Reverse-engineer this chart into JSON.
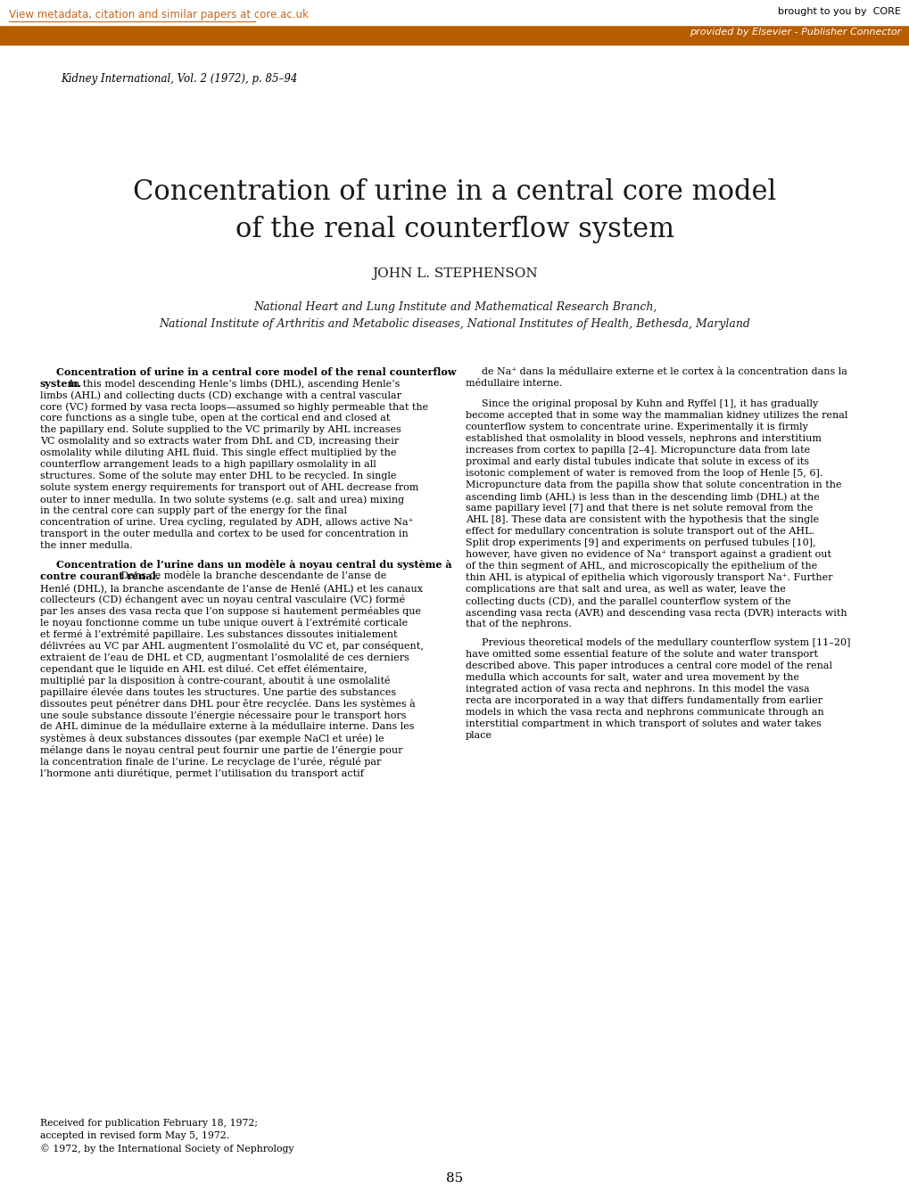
{
  "page_width": 10.2,
  "page_height": 13.45,
  "dpi": 100,
  "background_color": "#ffffff",
  "header_bar_color": "#b85c00",
  "header_link_text": "View metadata, citation and similar papers at core.ac.uk",
  "header_link_color": "#c8661a",
  "header_right_text": "brought to you by  CORE",
  "header_bar_text": "provided by Elsevier - Publisher Connector",
  "journal_citation": "Kidney International, Vol. 2 (1972), p. 85–94",
  "title_line1": "Concentration of urine in a central core model",
  "title_line2": "of the renal counterflow system",
  "author": "JOHN L. STEPHENSON",
  "affil1": "National Heart and Lung Institute and Mathematical Research Branch,",
  "affil2": "National Institute of Arthritis and Metabolic diseases, National Institutes of Health, Bethesda, Maryland",
  "abstract_left": "Concentration of urine in a central core model of the renal counterflow system. In this model descending Henle’s limbs (DHL), ascending Henle’s limbs (AHL) and collecting ducts (CD) exchange with a central vascular core (VC) formed by vasa recta loops—assumed so highly permeable that the core functions as a single tube, open at the cortical end and closed at the papillary end. Solute supplied to the VC primarily by AHL increases VC osmolality and so extracts water from DhL and CD, increasing their osmolality while diluting AHL fluid. This single effect multiplied by the counterflow arrangement leads to a high papillary osmolality in all structures. Some of the solute may enter DHL to be recycled. In single solute system energy requirements for transport out of AHL decrease from outer to inner medulla. In two solute systems (e.g. salt and urea) mixing in the central core can supply part of the energy for the final concentration of urine. Urea cycling, regulated by ADH, allows active Na⁺ transport in the outer medulla and cortex to be used for concentration in the inner medulla.",
  "abstract_bold_start": "Concentration of urine in a central core model of the renal counterflow system.",
  "abstract_right_french": "de Na⁺ dans la médullaire externe et le cortex à la concentration dans la médullaire interne.",
  "abstract_right_para1": "Since the original proposal by Kuhn and Ryffel [1], it has gradually become accepted that in some way the mammalian kidney utilizes the renal counterflow system to concentrate urine. Experimentally it is firmly established that osmolality in blood vessels, nephrons and interstitium increases from cortex to papilla [2–4]. Micropuncture data from late proximal and early distal tubules indicate that solute in excess of its isotonic complement of water is removed from the loop of Henle [5, 6]. Micropuncture data from the papilla show that solute concentration in the ascending limb (AHL) is less than in the descending limb (DHL) at the same papillary level [7] and that there is net solute removal from the AHL [8]. These data are consistent with the hypothesis that the single effect for medullary concentration is solute transport out of the AHL. Split drop experiments [9] and experiments on perfused tubules [10], however, have given no evidence of Na⁺ transport against a gradient out of the thin segment of AHL, and microscopically the epithelium of the thin AHL is atypical of epithelia which vigorously transport Na⁺. Further complications are that salt and urea, as well as water, leave the collecting ducts (CD), and the parallel counterflow system of the ascending vasa recta (AVR) and descending vasa recta (DVR) interacts with that of the nephrons.",
  "abstract_right_para2": "Previous theoretical models of the medullary counterflow system [11–20] have omitted some essential feature of the solute and water transport described above. This paper introduces a central core model of the renal medulla which accounts for salt, water and urea movement by the integrated action of vasa recta and nephrons. In this model the vasa recta are incorporated in a way that differs fundamentally from earlier models in which the vasa recta and nephrons communicate through an interstitial compartment in which transport of solutes and water takes place",
  "french_abstract_title": "Concentration de l’urine dans un modèle à noyau central du système à contre courant rénal.",
  "french_abstract_text": "Dans ce modèle la branche descendante de l’anse de Henlé (DHL), la branche ascendante de l’anse de Henlé (AHL) et les canaux collecteurs (CD) échangent avec un noyau central vasculaire (VC) formé par les anses des vasa recta que l’on suppose si hautement perméables que le noyau fonctionne comme un tube unique ouvert à l’extrémité corticale et fermé à l’extrémité papillaire. Les substances dissoutes initialement délivrées au VC par AHL augmentent l’osmolalité du VC et, par conséquent, extraient de l’eau de DHL et CD, augmentant l’osmolalité de ces derniers cependant que le liquide en AHL est dilué. Cet effet élémentaire, multiplié par la disposition à contre-courant, aboutit à une osmolalité papillaire élevée dans toutes les structures. Une partie des substances dissoutes peut pénétrer dans DHL pour être recyclée. Dans les systèmes à une soule substance dissoute l’énergie nécessaire pour le transport hors de AHL diminue de la médullaire externe à la médullaire interne. Dans les systèmes à deux substances dissoutes (par exemple NaCl et urée) le mélange dans le noyau central peut fournir une partie de l’énergie pour la concentration finale de l’urine. Le recyclage de l’urée, régulé par l’hormone anti diurétique, permet l’utilisation du transport actif",
  "footer_received": "Received for publication February 18, 1972;",
  "footer_accepted": "accepted in revised form May 5, 1972.",
  "footer_copyright": "© 1972, by the International Society of Nephrology",
  "page_number": "85"
}
